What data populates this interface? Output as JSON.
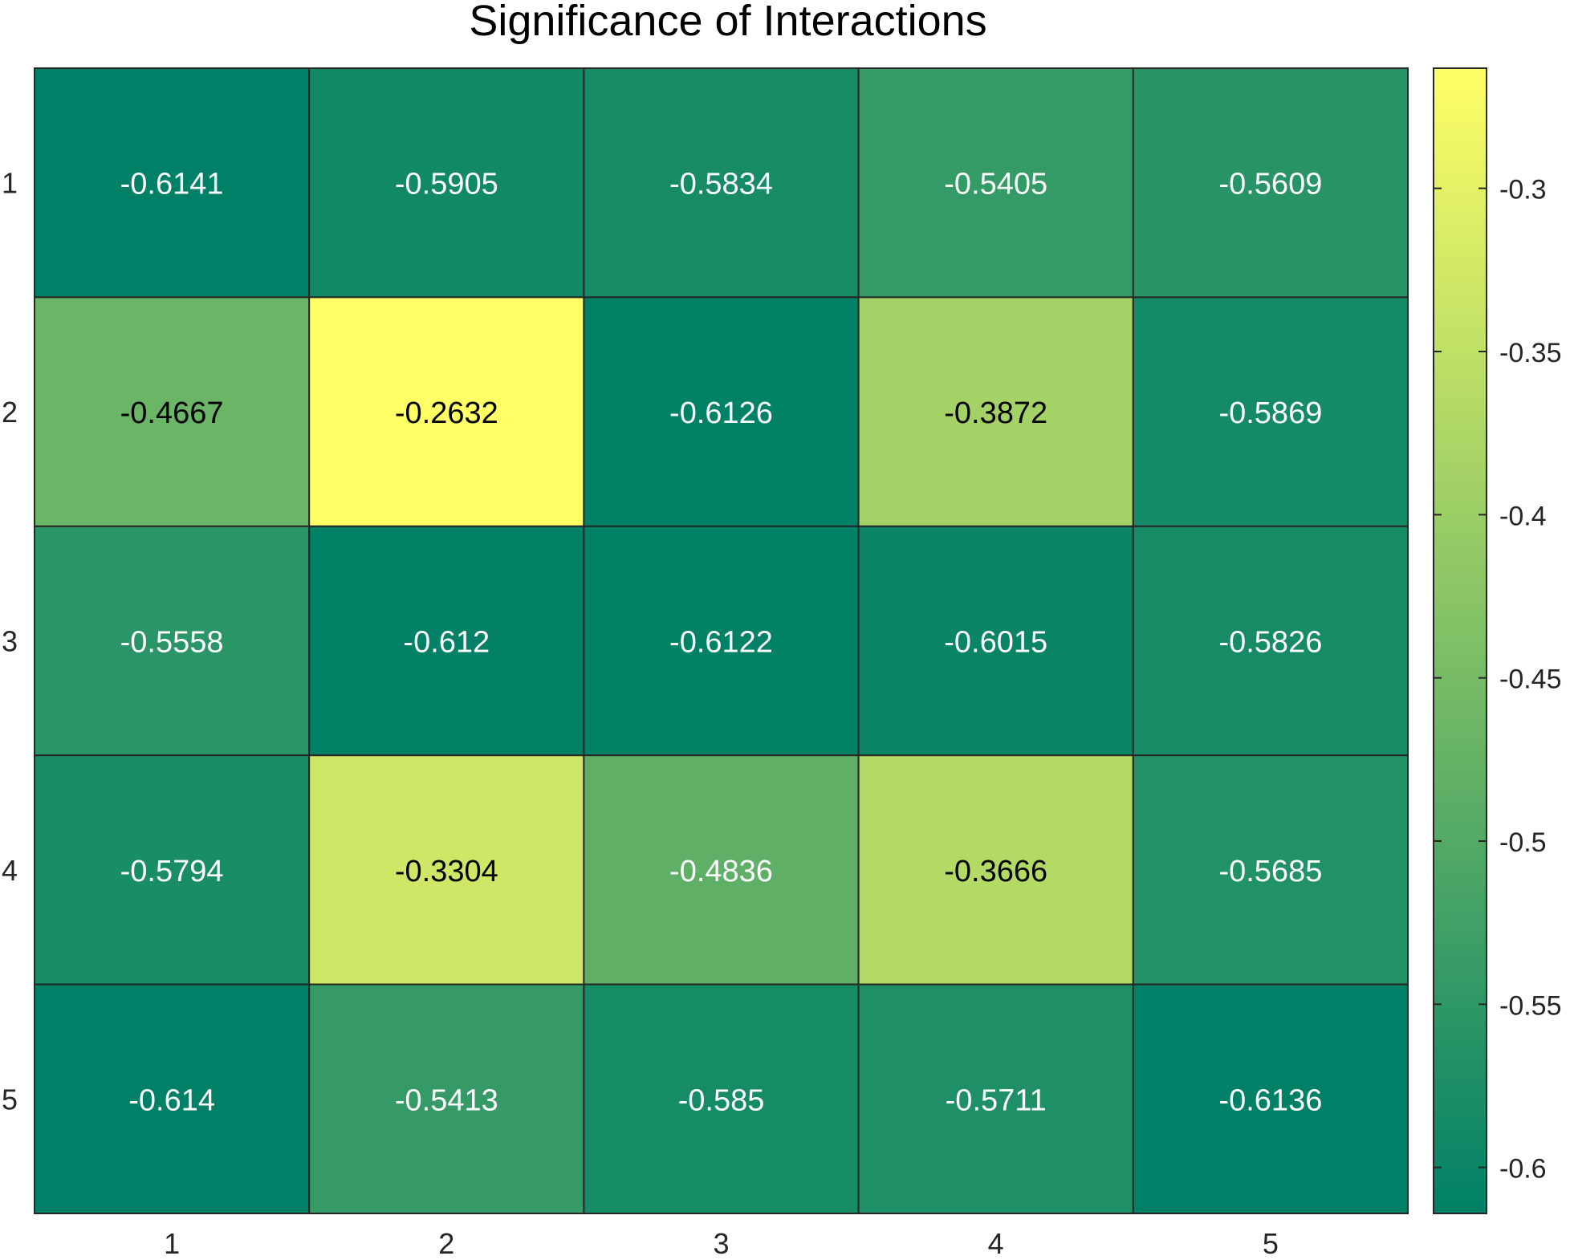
{
  "chart_data": {
    "type": "heatmap",
    "title": "Significance of Interactions",
    "xlabel": "",
    "ylabel": "",
    "x_categories": [
      "1",
      "2",
      "3",
      "4",
      "5"
    ],
    "y_categories": [
      "1",
      "2",
      "3",
      "4",
      "5"
    ],
    "values": [
      [
        -0.6141,
        -0.5905,
        -0.5834,
        -0.5405,
        -0.5609
      ],
      [
        -0.4667,
        -0.2632,
        -0.6126,
        -0.3872,
        -0.5869
      ],
      [
        -0.5558,
        -0.612,
        -0.6122,
        -0.6015,
        -0.5826
      ],
      [
        -0.5794,
        -0.3304,
        -0.4836,
        -0.3666,
        -0.5685
      ],
      [
        -0.614,
        -0.5413,
        -0.585,
        -0.5711,
        -0.6136
      ]
    ],
    "value_labels": [
      [
        "-0.6141",
        "-0.5905",
        "-0.5834",
        "-0.5405",
        "-0.5609"
      ],
      [
        "-0.4667",
        "-0.2632",
        "-0.6126",
        "-0.3872",
        "-0.5869"
      ],
      [
        "-0.5558",
        "-0.612",
        "-0.6122",
        "-0.6015",
        "-0.5826"
      ],
      [
        "-0.5794",
        "-0.3304",
        "-0.4836",
        "-0.3666",
        "-0.5685"
      ],
      [
        "-0.614",
        "-0.5413",
        "-0.585",
        "-0.5711",
        "-0.6136"
      ]
    ],
    "colorbar": {
      "range": [
        -0.6141,
        -0.2632
      ],
      "ticks": [
        -0.3,
        -0.35,
        -0.4,
        -0.45,
        -0.5,
        -0.55,
        -0.6
      ],
      "tick_labels": [
        "-0.3",
        "-0.35",
        "-0.4",
        "-0.45",
        "-0.5",
        "-0.55",
        "-0.6"
      ],
      "colormap": "summer",
      "color_low": "#008066",
      "color_high": "#ffff66",
      "placement": "right"
    },
    "grid": false,
    "label_color_dark": "#000000",
    "label_color_light": "#ffffff",
    "border_color": "#262626"
  }
}
